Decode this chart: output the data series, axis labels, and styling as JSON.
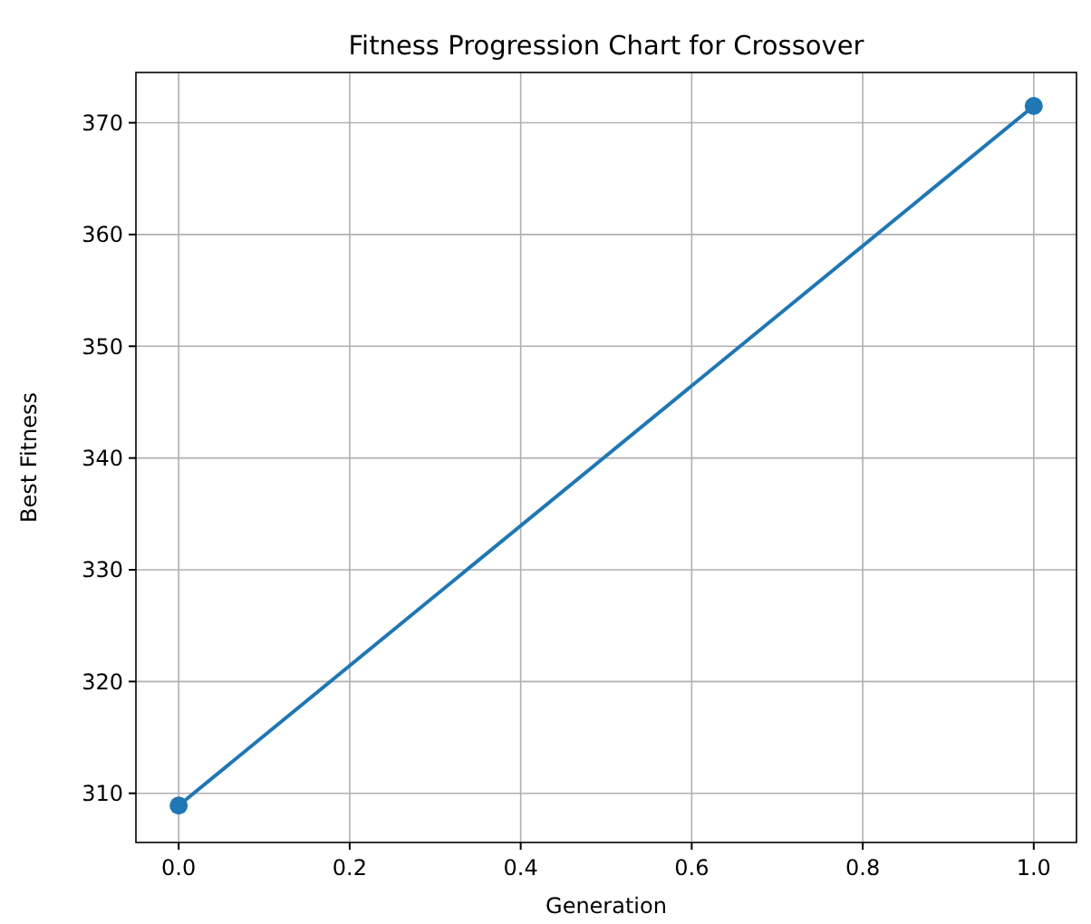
{
  "chart_data": {
    "type": "line",
    "title": "Fitness Progression Chart for Crossover",
    "xlabel": "Generation",
    "ylabel": "Best Fitness",
    "x": [
      0,
      1
    ],
    "series": [
      {
        "color": "#1f77b4",
        "values": [
          308.9,
          371.5
        ]
      }
    ],
    "xlim": [
      -0.05,
      1.05
    ],
    "xticks": [
      {
        "value": 0,
        "label": "0.0"
      },
      {
        "value": 0.2,
        "label": "0.2"
      },
      {
        "value": 0.4,
        "label": "0.4"
      },
      {
        "value": 0.6,
        "label": "0.6"
      },
      {
        "value": 0.8,
        "label": "0.8"
      },
      {
        "value": 1,
        "label": "1.0"
      }
    ],
    "ylim": [
      305.6,
      374.5
    ],
    "yticks": [
      310,
      320,
      330,
      340,
      350,
      360,
      370
    ],
    "grid": true,
    "marker": "circle",
    "line_style": "solid"
  }
}
